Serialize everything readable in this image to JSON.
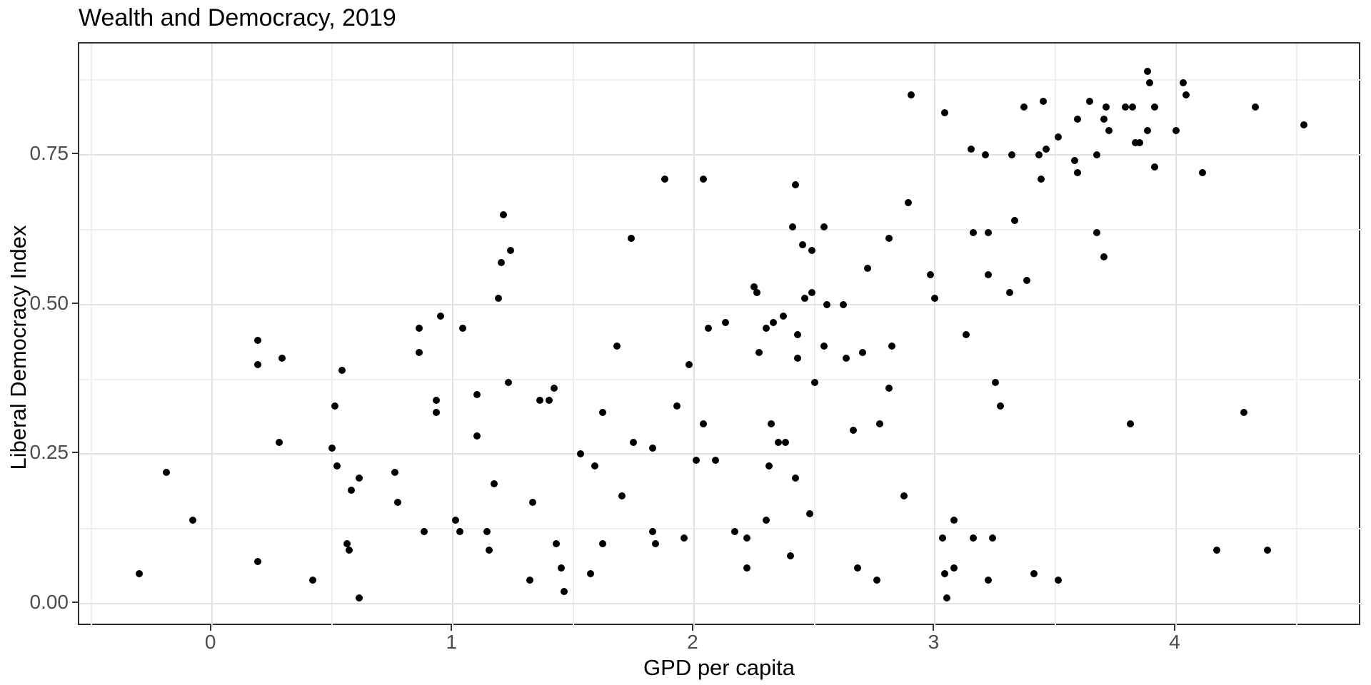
{
  "chart_data": {
    "type": "scatter",
    "title": "Wealth and Democracy, 2019",
    "xlabel": "GPD per capita",
    "ylabel": "Liberal Democracy Index",
    "x_ticks": [
      "0",
      "1",
      "2",
      "3",
      "4"
    ],
    "x_tick_values": [
      0,
      1,
      2,
      3,
      4
    ],
    "y_ticks": [
      "0.00",
      "0.25",
      "0.50",
      "0.75"
    ],
    "y_tick_values": [
      0,
      0.25,
      0.5,
      0.75
    ],
    "x_minor_values": [
      -0.5,
      0.5,
      1.5,
      2.5,
      3.5,
      4.5
    ],
    "y_minor_values": [
      0.125,
      0.375,
      0.625,
      0.875
    ],
    "x_range": [
      -0.55,
      4.77
    ],
    "y_range": [
      -0.038,
      0.936
    ],
    "grid": "major-and-minor",
    "legend_position": "none",
    "point_color": "#000000",
    "background_color": "#ffffff",
    "gridline_color": "#e2e2e2",
    "points": [
      [
        -0.3,
        0.05
      ],
      [
        -0.19,
        0.22
      ],
      [
        -0.08,
        0.14
      ],
      [
        0.19,
        0.44
      ],
      [
        0.29,
        0.41
      ],
      [
        0.19,
        0.4
      ],
      [
        0.54,
        0.39
      ],
      [
        0.51,
        0.33
      ],
      [
        0.28,
        0.27
      ],
      [
        0.5,
        0.26
      ],
      [
        0.52,
        0.23
      ],
      [
        0.61,
        0.21
      ],
      [
        0.58,
        0.19
      ],
      [
        0.76,
        0.22
      ],
      [
        0.77,
        0.17
      ],
      [
        0.19,
        0.07
      ],
      [
        0.42,
        0.04
      ],
      [
        0.61,
        0.01
      ],
      [
        0.56,
        0.1
      ],
      [
        0.57,
        0.09
      ],
      [
        0.88,
        0.12
      ],
      [
        1.01,
        0.14
      ],
      [
        1.03,
        0.12
      ],
      [
        1.14,
        0.12
      ],
      [
        1.15,
        0.09
      ],
      [
        1.17,
        0.2
      ],
      [
        0.86,
        0.42
      ],
      [
        0.93,
        0.34
      ],
      [
        0.93,
        0.32
      ],
      [
        1.1,
        0.35
      ],
      [
        1.1,
        0.28
      ],
      [
        1.23,
        0.37
      ],
      [
        1.21,
        0.65
      ],
      [
        1.2,
        0.57
      ],
      [
        1.24,
        0.59
      ],
      [
        1.19,
        0.51
      ],
      [
        0.95,
        0.48
      ],
      [
        0.86,
        0.46
      ],
      [
        1.04,
        0.46
      ],
      [
        1.88,
        0.71
      ],
      [
        2.04,
        0.71
      ],
      [
        2.42,
        0.7
      ],
      [
        2.9,
        0.85
      ],
      [
        2.89,
        0.67
      ],
      [
        2.41,
        0.63
      ],
      [
        2.54,
        0.63
      ],
      [
        1.74,
        0.61
      ],
      [
        2.45,
        0.6
      ],
      [
        2.49,
        0.59
      ],
      [
        2.81,
        0.61
      ],
      [
        2.72,
        0.56
      ],
      [
        2.25,
        0.53
      ],
      [
        2.26,
        0.52
      ],
      [
        2.46,
        0.51
      ],
      [
        2.49,
        0.52
      ],
      [
        2.55,
        0.5
      ],
      [
        2.62,
        0.5
      ],
      [
        2.06,
        0.46
      ],
      [
        2.13,
        0.47
      ],
      [
        2.33,
        0.47
      ],
      [
        2.37,
        0.48
      ],
      [
        2.3,
        0.46
      ],
      [
        2.43,
        0.45
      ],
      [
        2.98,
        0.55
      ],
      [
        3.0,
        0.51
      ],
      [
        1.68,
        0.43
      ],
      [
        1.98,
        0.4
      ],
      [
        2.27,
        0.42
      ],
      [
        2.43,
        0.41
      ],
      [
        2.54,
        0.43
      ],
      [
        2.63,
        0.41
      ],
      [
        2.7,
        0.42
      ],
      [
        2.82,
        0.43
      ],
      [
        2.5,
        0.37
      ],
      [
        2.81,
        0.36
      ],
      [
        1.42,
        0.36
      ],
      [
        1.36,
        0.34
      ],
      [
        1.4,
        0.34
      ],
      [
        1.62,
        0.32
      ],
      [
        1.93,
        0.33
      ],
      [
        2.04,
        0.3
      ],
      [
        2.32,
        0.3
      ],
      [
        2.35,
        0.27
      ],
      [
        2.38,
        0.27
      ],
      [
        2.66,
        0.29
      ],
      [
        2.77,
        0.3
      ],
      [
        1.75,
        0.27
      ],
      [
        1.83,
        0.26
      ],
      [
        1.53,
        0.25
      ],
      [
        1.59,
        0.23
      ],
      [
        2.01,
        0.24
      ],
      [
        2.09,
        0.24
      ],
      [
        2.31,
        0.23
      ],
      [
        2.42,
        0.21
      ],
      [
        1.33,
        0.17
      ],
      [
        1.7,
        0.18
      ],
      [
        2.3,
        0.14
      ],
      [
        2.48,
        0.15
      ],
      [
        2.87,
        0.18
      ],
      [
        1.83,
        0.12
      ],
      [
        1.96,
        0.11
      ],
      [
        1.84,
        0.1
      ],
      [
        1.62,
        0.1
      ],
      [
        1.43,
        0.1
      ],
      [
        1.45,
        0.06
      ],
      [
        1.32,
        0.04
      ],
      [
        1.57,
        0.05
      ],
      [
        1.46,
        0.02
      ],
      [
        2.17,
        0.12
      ],
      [
        2.22,
        0.11
      ],
      [
        2.22,
        0.06
      ],
      [
        2.4,
        0.08
      ],
      [
        2.68,
        0.06
      ],
      [
        2.76,
        0.04
      ],
      [
        3.04,
        0.82
      ],
      [
        3.88,
        0.89
      ],
      [
        3.89,
        0.87
      ],
      [
        4.03,
        0.87
      ],
      [
        4.04,
        0.85
      ],
      [
        3.45,
        0.84
      ],
      [
        3.37,
        0.83
      ],
      [
        3.64,
        0.84
      ],
      [
        3.71,
        0.83
      ],
      [
        3.79,
        0.83
      ],
      [
        3.82,
        0.83
      ],
      [
        3.91,
        0.83
      ],
      [
        4.33,
        0.83
      ],
      [
        4.53,
        0.8
      ],
      [
        3.59,
        0.81
      ],
      [
        3.7,
        0.81
      ],
      [
        3.72,
        0.79
      ],
      [
        3.88,
        0.79
      ],
      [
        4.0,
        0.79
      ],
      [
        3.51,
        0.78
      ],
      [
        3.83,
        0.77
      ],
      [
        3.85,
        0.77
      ],
      [
        3.15,
        0.76
      ],
      [
        3.46,
        0.76
      ],
      [
        3.21,
        0.75
      ],
      [
        3.32,
        0.75
      ],
      [
        3.43,
        0.75
      ],
      [
        3.67,
        0.75
      ],
      [
        3.58,
        0.74
      ],
      [
        3.59,
        0.72
      ],
      [
        3.91,
        0.73
      ],
      [
        4.11,
        0.72
      ],
      [
        3.44,
        0.71
      ],
      [
        3.33,
        0.64
      ],
      [
        3.16,
        0.62
      ],
      [
        3.22,
        0.62
      ],
      [
        3.67,
        0.62
      ],
      [
        3.7,
        0.58
      ],
      [
        3.22,
        0.55
      ],
      [
        3.31,
        0.52
      ],
      [
        3.38,
        0.54
      ],
      [
        3.25,
        0.37
      ],
      [
        3.27,
        0.33
      ],
      [
        3.81,
        0.3
      ],
      [
        4.28,
        0.32
      ],
      [
        3.13,
        0.45
      ],
      [
        3.08,
        0.14
      ],
      [
        3.03,
        0.11
      ],
      [
        3.16,
        0.11
      ],
      [
        3.24,
        0.11
      ],
      [
        3.08,
        0.06
      ],
      [
        3.04,
        0.05
      ],
      [
        3.22,
        0.04
      ],
      [
        3.41,
        0.05
      ],
      [
        3.51,
        0.04
      ],
      [
        3.05,
        0.01
      ],
      [
        4.17,
        0.09
      ],
      [
        4.38,
        0.09
      ]
    ]
  }
}
